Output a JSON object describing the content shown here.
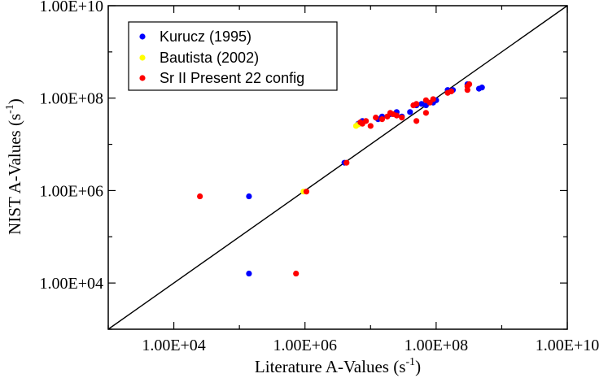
{
  "chart_data": {
    "type": "scatter",
    "title": "",
    "xlabel": "Literature A-Values",
    "xlabel_unit_base": "s",
    "xlabel_unit_exp": "-1",
    "ylabel": "NIST A-Values",
    "ylabel_unit_base": "s",
    "ylabel_unit_exp": "-1",
    "x_scale": "log",
    "y_scale": "log",
    "xlim": [
      1000,
      10000000000
    ],
    "ylim": [
      1000,
      10000000000
    ],
    "x_ticks": [
      10000,
      1000000,
      100000000,
      10000000000
    ],
    "x_tick_labels": [
      "1.00E+04",
      "1.00E+06",
      "1.00E+08",
      "1.00E+10"
    ],
    "y_ticks": [
      10000,
      1000000,
      100000000,
      10000000000
    ],
    "y_tick_labels": [
      "1.00E+04",
      "1.00E+06",
      "1.00E+08",
      "1.00E+10"
    ],
    "grid": false,
    "legend_position": "top-left",
    "reference_line": {
      "name": "y = x",
      "color": "#000000"
    },
    "series": [
      {
        "name": "Kurucz (1995)",
        "color": "#0000ff",
        "x": [
          140000,
          140000,
          4000000,
          6500000,
          7500000,
          13000000,
          15000000,
          20000000,
          25000000,
          30000000,
          40000000,
          50000000,
          60000000,
          70000000,
          90000000,
          100000000,
          150000000,
          180000000,
          300000000,
          450000000,
          500000000
        ],
        "y": [
          750000,
          16000,
          4000000,
          28000000,
          32000000,
          35000000,
          40000000,
          45000000,
          50000000,
          40000000,
          50000000,
          70000000,
          75000000,
          70000000,
          80000000,
          90000000,
          150000000,
          150000000,
          200000000,
          160000000,
          170000000
        ]
      },
      {
        "name": "Bautista (2002)",
        "color": "#ffff00",
        "x": [
          950000,
          6000000,
          6500000
        ],
        "y": [
          950000,
          25000000,
          27000000
        ]
      },
      {
        "name": "Sr II Present 22 config",
        "color": "#ff0000",
        "x": [
          25000,
          730000,
          1050000,
          4300000,
          7000000,
          7500000,
          8500000,
          10000000,
          12000000,
          15000000,
          18000000,
          20000000,
          22000000,
          25000000,
          30000000,
          45000000,
          50000000,
          50000000,
          70000000,
          70000000,
          80000000,
          90000000,
          150000000,
          170000000,
          300000000,
          300000000,
          320000000
        ],
        "y": [
          750000,
          16000,
          950000,
          4000000,
          30000000,
          28000000,
          32000000,
          25000000,
          38000000,
          35000000,
          40000000,
          48000000,
          45000000,
          42000000,
          38000000,
          70000000,
          75000000,
          32000000,
          90000000,
          48000000,
          80000000,
          95000000,
          130000000,
          140000000,
          150000000,
          180000000,
          200000000
        ]
      }
    ]
  }
}
